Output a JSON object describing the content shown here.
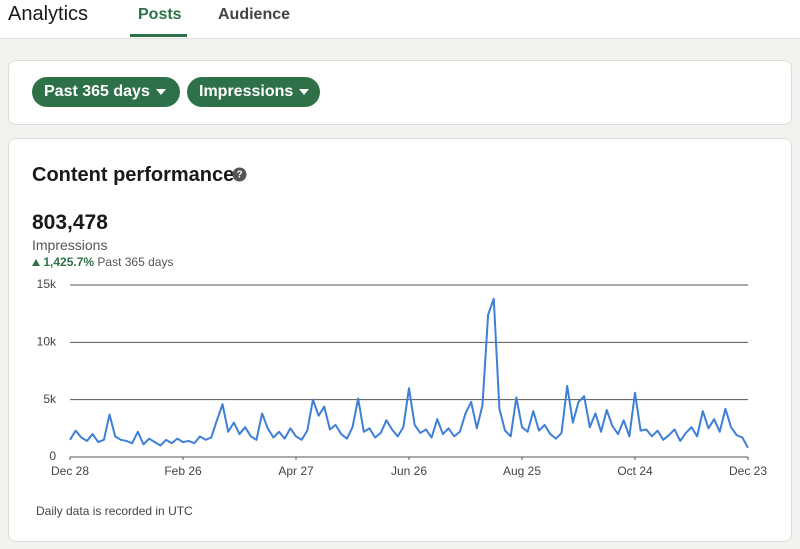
{
  "header": {
    "title": "Analytics",
    "tabs": [
      "Posts",
      "Audience"
    ]
  },
  "filters": [
    "Past 365 days",
    "Impressions"
  ],
  "card": {
    "title": "Content performance",
    "total": "803,478",
    "metric": "Impressions",
    "change": "1,425.7%",
    "period": "Past 365 days",
    "footnote": "Daily data is recorded in UTC"
  },
  "chart_data": {
    "type": "line",
    "x": [
      0,
      3,
      6,
      9,
      12,
      15,
      18,
      21,
      24,
      27,
      30,
      33,
      36,
      39,
      42,
      45,
      48,
      51,
      54,
      57,
      60,
      63,
      66,
      69,
      72,
      75,
      78,
      81,
      84,
      87,
      90,
      93,
      96,
      99,
      102,
      105,
      108,
      111,
      114,
      117,
      120,
      123,
      126,
      129,
      132,
      135,
      138,
      141,
      144,
      147,
      150,
      153,
      156,
      159,
      162,
      165,
      168,
      171,
      174,
      177,
      180,
      183,
      186,
      189,
      192,
      195,
      198,
      201,
      204,
      207,
      210,
      213,
      216,
      219,
      222,
      225,
      228,
      231,
      234,
      237,
      240,
      243,
      246,
      249,
      252,
      255,
      258,
      261,
      264,
      267,
      270,
      273,
      276,
      279,
      282,
      285,
      288,
      291,
      294,
      297,
      300,
      303,
      306,
      309,
      312,
      315,
      318,
      321,
      324,
      327,
      330,
      333,
      336,
      339,
      342,
      345,
      348,
      351,
      354,
      357,
      360
    ],
    "series": [
      {
        "name": "Impressions",
        "color": "#3f7fd6",
        "values": [
          1500,
          2300,
          1700,
          1400,
          2000,
          1300,
          1500,
          3700,
          1800,
          1500,
          1400,
          1200,
          2200,
          1100,
          1600,
          1300,
          1000,
          1500,
          1200,
          1600,
          1300,
          1400,
          1200,
          1800,
          1500,
          1700,
          3200,
          4600,
          2200,
          3000,
          2000,
          2600,
          1800,
          1500,
          3800,
          2500,
          1700,
          2200,
          1600,
          2500,
          1800,
          1500,
          2300,
          5000,
          3600,
          4400,
          2400,
          2800,
          2000,
          1600,
          2600,
          5100,
          2200,
          2500,
          1700,
          2100,
          3200,
          2400,
          1800,
          2600,
          6000,
          2800,
          2100,
          2400,
          1700,
          3300,
          2000,
          2500,
          1800,
          2200,
          3800,
          4800,
          2500,
          4500,
          12400,
          13800,
          4200,
          2300,
          1800,
          5200,
          2600,
          2200,
          4000,
          2300,
          2800,
          2000,
          1600,
          2100,
          6200,
          3000,
          4800,
          5300,
          2600,
          3800,
          2200,
          4100,
          2700,
          2000,
          3200,
          1800,
          5600,
          2300,
          2400,
          1800,
          2300,
          1500,
          1900,
          2400,
          1400,
          2100,
          2600,
          1800,
          4000,
          2500,
          3300,
          2200,
          4200,
          2600,
          1900,
          1700,
          800
        ]
      }
    ],
    "xlim": [
      0,
      360
    ],
    "xticks": [
      {
        "value": 0,
        "label": "Dec 28"
      },
      {
        "value": 60,
        "label": "Feb 26"
      },
      {
        "value": 120,
        "label": "Apr 27"
      },
      {
        "value": 180,
        "label": "Jun 26"
      },
      {
        "value": 240,
        "label": "Aug 25"
      },
      {
        "value": 300,
        "label": "Oct 24"
      },
      {
        "value": 360,
        "label": "Dec 23"
      }
    ],
    "ylim": [
      0,
      15000
    ],
    "yticks": [
      0,
      {
        "value": 5000,
        "label": "5k"
      },
      {
        "value": 10000,
        "label": "10k"
      },
      {
        "value": 15000,
        "label": "15k"
      }
    ],
    "grid": true
  }
}
